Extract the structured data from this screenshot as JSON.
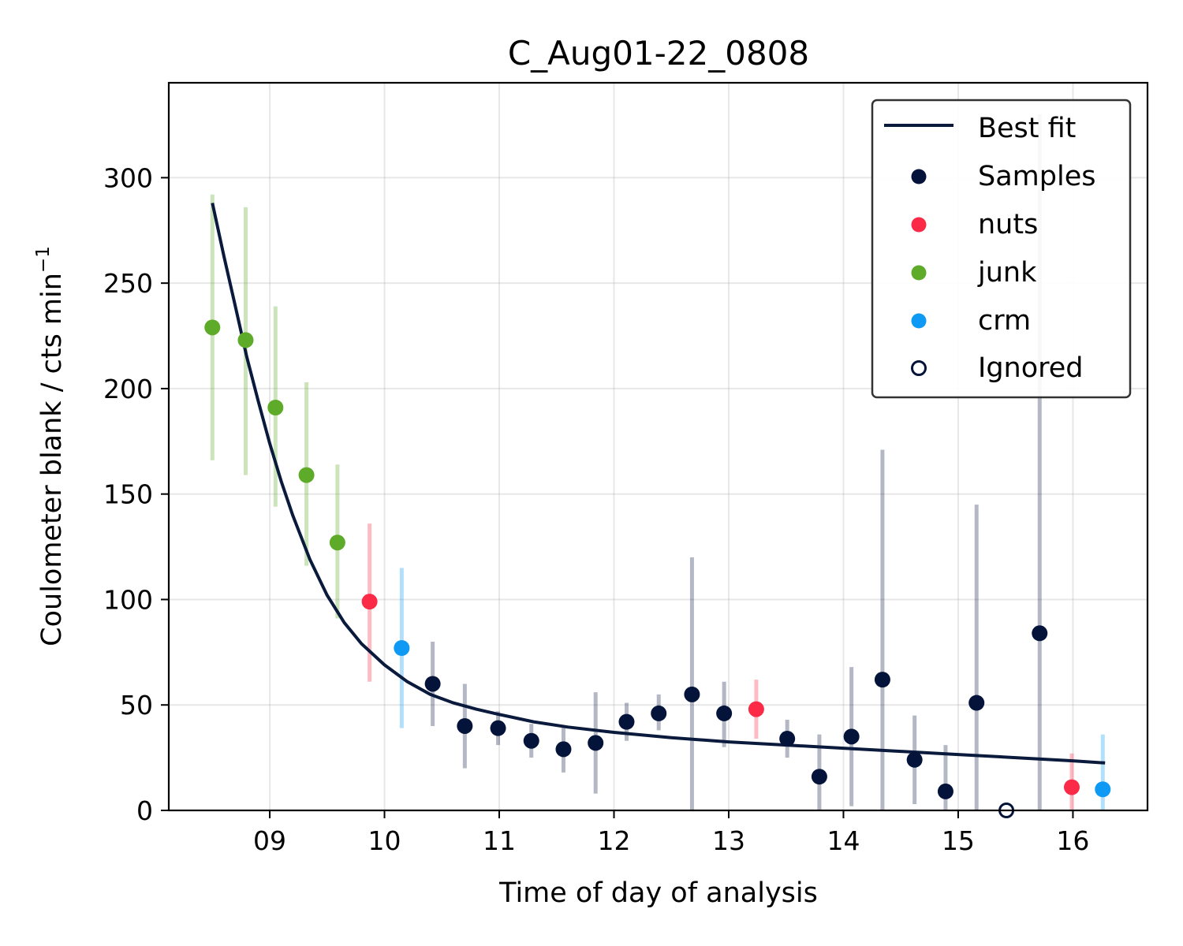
{
  "chart_data": {
    "type": "scatter",
    "title": "C_Aug01-22_0808",
    "xlabel": "Time of day of analysis",
    "ylabel": "Coulometer blank / cts min",
    "ylabel_superscript": "−1",
    "xlim": [
      8.12,
      16.65
    ],
    "ylim": [
      0,
      345
    ],
    "x_tick_values": [
      9,
      10,
      11,
      12,
      13,
      14,
      15,
      16
    ],
    "x_tick_labels": [
      "09",
      "10",
      "11",
      "12",
      "13",
      "14",
      "15",
      "16"
    ],
    "y_ticks": [
      0,
      50,
      100,
      150,
      200,
      250,
      300
    ],
    "grid": true,
    "legend_position": "top-right",
    "colors": {
      "best_fit": "#0a1a3c",
      "samples": "#04133a",
      "nuts": "#fb2b48",
      "junk": "#5dab28",
      "crm": "#0e9af4"
    },
    "legend": [
      "Best fit",
      "Samples",
      "nuts",
      "junk",
      "crm",
      "Ignored"
    ],
    "best_fit": {
      "name": "Best fit",
      "x": [
        8.5,
        8.6,
        8.7,
        8.8,
        8.9,
        9.0,
        9.1,
        9.2,
        9.35,
        9.5,
        9.65,
        9.8,
        10.0,
        10.2,
        10.4,
        10.6,
        10.8,
        11.0,
        11.3,
        11.6,
        12.0,
        12.5,
        13.0,
        13.5,
        14.0,
        14.5,
        15.0,
        15.5,
        16.0,
        16.28
      ],
      "y": [
        288,
        263,
        239,
        215,
        194,
        174,
        156,
        140,
        119,
        102,
        89,
        79,
        69,
        61,
        55,
        51,
        48,
        45.5,
        42,
        39.5,
        37,
        34.5,
        32.5,
        31,
        29.5,
        28,
        26.5,
        25,
        23.5,
        22.5
      ]
    },
    "series": [
      {
        "name": "Samples",
        "points": [
          {
            "x": 10.42,
            "y": 60,
            "lo": 40,
            "hi": 80
          },
          {
            "x": 10.7,
            "y": 40,
            "lo": 20,
            "hi": 60
          },
          {
            "x": 10.99,
            "y": 39,
            "lo": 31,
            "hi": 47
          },
          {
            "x": 11.28,
            "y": 33,
            "lo": 25,
            "hi": 41
          },
          {
            "x": 11.56,
            "y": 29,
            "lo": 18,
            "hi": 40
          },
          {
            "x": 11.84,
            "y": 32,
            "lo": 8,
            "hi": 56
          },
          {
            "x": 12.11,
            "y": 42,
            "lo": 33,
            "hi": 51
          },
          {
            "x": 12.39,
            "y": 46,
            "lo": 38,
            "hi": 55
          },
          {
            "x": 12.68,
            "y": 55,
            "lo": 0,
            "hi": 120
          },
          {
            "x": 12.96,
            "y": 46,
            "lo": 30,
            "hi": 61
          },
          {
            "x": 13.51,
            "y": 34,
            "lo": 25,
            "hi": 43
          },
          {
            "x": 13.79,
            "y": 16,
            "lo": 0,
            "hi": 36
          },
          {
            "x": 14.07,
            "y": 35,
            "lo": 2,
            "hi": 68
          },
          {
            "x": 14.34,
            "y": 62,
            "lo": 0,
            "hi": 171
          },
          {
            "x": 14.62,
            "y": 24,
            "lo": 3,
            "hi": 45
          },
          {
            "x": 14.89,
            "y": 9,
            "lo": 0,
            "hi": 31
          },
          {
            "x": 15.16,
            "y": 51,
            "lo": 0,
            "hi": 145
          },
          {
            "x": 15.71,
            "y": 84,
            "lo": 0,
            "hi": 330
          }
        ]
      },
      {
        "name": "nuts",
        "points": [
          {
            "x": 9.87,
            "y": 99,
            "lo": 61,
            "hi": 136
          },
          {
            "x": 13.24,
            "y": 48,
            "lo": 34,
            "hi": 62
          },
          {
            "x": 15.99,
            "y": 11,
            "lo": 0,
            "hi": 27
          }
        ]
      },
      {
        "name": "junk",
        "points": [
          {
            "x": 8.5,
            "y": 229,
            "lo": 166,
            "hi": 292
          },
          {
            "x": 8.79,
            "y": 223,
            "lo": 159,
            "hi": 286
          },
          {
            "x": 9.05,
            "y": 191,
            "lo": 144,
            "hi": 239
          },
          {
            "x": 9.32,
            "y": 159,
            "lo": 116,
            "hi": 203
          },
          {
            "x": 9.59,
            "y": 127,
            "lo": 91,
            "hi": 164
          }
        ]
      },
      {
        "name": "crm",
        "points": [
          {
            "x": 10.15,
            "y": 77,
            "lo": 39,
            "hi": 115
          },
          {
            "x": 16.26,
            "y": 10,
            "lo": 0,
            "hi": 36
          }
        ]
      },
      {
        "name": "Ignored",
        "points": [
          {
            "x": 15.42,
            "y": 0
          }
        ]
      }
    ]
  }
}
